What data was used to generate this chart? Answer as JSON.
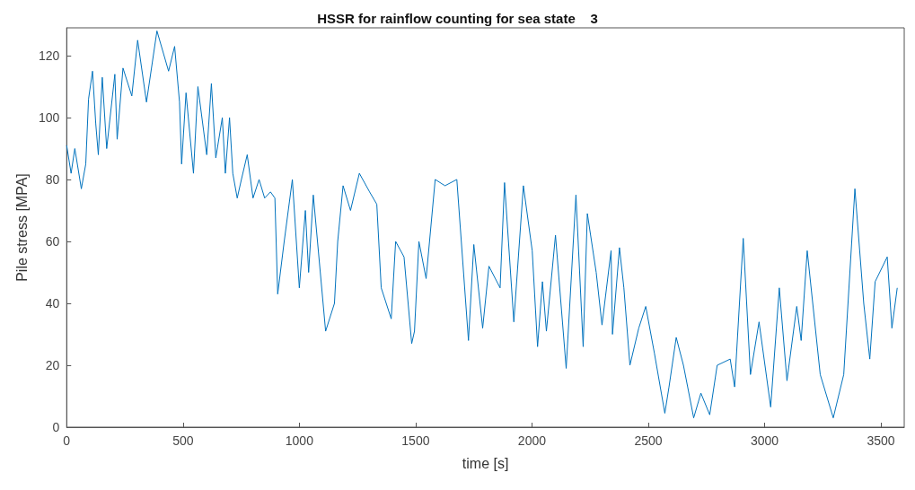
{
  "chart_data": {
    "type": "line",
    "title": "HSSR for rainflow counting for sea state    3",
    "xlabel": "time [s]",
    "ylabel": "Pile stress [MPA]",
    "xlim": [
      0,
      3600
    ],
    "xticks": [
      0,
      500,
      1000,
      1500,
      2000,
      2500,
      3000,
      3500
    ],
    "ylim": [
      0,
      129
    ],
    "yticks": [
      0,
      20,
      40,
      60,
      80,
      100,
      120
    ],
    "grid": false,
    "marker": "none",
    "line_style": "solid",
    "series": [
      {
        "color": "#0072bd",
        "x": [
          0,
          19,
          35,
          63,
          82,
          94,
          111,
          125,
          136,
          153,
          172,
          207,
          217,
          242,
          280,
          305,
          343,
          388,
          438,
          464,
          485,
          494,
          513,
          545,
          564,
          602,
          622,
          641,
          669,
          682,
          700,
          714,
          733,
          751,
          776,
          801,
          827,
          851,
          876,
          895,
          907,
          935,
          970,
          1000,
          1026,
          1040,
          1060,
          1113,
          1151,
          1165,
          1188,
          1220,
          1258,
          1302,
          1333,
          1352,
          1395,
          1414,
          1450,
          1483,
          1495,
          1514,
          1545,
          1584,
          1626,
          1677,
          1727,
          1750,
          1788,
          1815,
          1863,
          1882,
          1922,
          1963,
          2001,
          2024,
          2045,
          2062,
          2101,
          2147,
          2189,
          2220,
          2238,
          2276,
          2301,
          2340,
          2346,
          2376,
          2395,
          2421,
          2459,
          2489,
          2526,
          2571,
          2589,
          2620,
          2651,
          2695,
          2726,
          2764,
          2796,
          2852,
          2871,
          2908,
          2939,
          2976,
          3026,
          3063,
          3096,
          3138,
          3157,
          3183,
          3239,
          3295,
          3340,
          3388,
          3426,
          3452,
          3475,
          3527,
          3547,
          3570
        ],
        "values": [
          91,
          82,
          90,
          77,
          85,
          106,
          115,
          98,
          88,
          113,
          90,
          114,
          93,
          116,
          107,
          125,
          105,
          128,
          115,
          123,
          105,
          85,
          108,
          82,
          110,
          88,
          111,
          87,
          100,
          82,
          100,
          82,
          74,
          80,
          88,
          74,
          80,
          74,
          76,
          74,
          43,
          60,
          80,
          45,
          70,
          50,
          75,
          31,
          40,
          60,
          78,
          70,
          82,
          76,
          72,
          45,
          35,
          60,
          55,
          27,
          31,
          60,
          48,
          80,
          78,
          80,
          28,
          59,
          32,
          52,
          45,
          79,
          34,
          78,
          57,
          26,
          47,
          31,
          62,
          19,
          75,
          26,
          69,
          50,
          33,
          57,
          30,
          58,
          45,
          20,
          32,
          39,
          24,
          4.5,
          13,
          29,
          20,
          3,
          11,
          4,
          20,
          22,
          13,
          61,
          17,
          34,
          6.5,
          45,
          15,
          39,
          28,
          57,
          17,
          3,
          17,
          77,
          40,
          22,
          47,
          55,
          32,
          45
        ]
      }
    ]
  }
}
